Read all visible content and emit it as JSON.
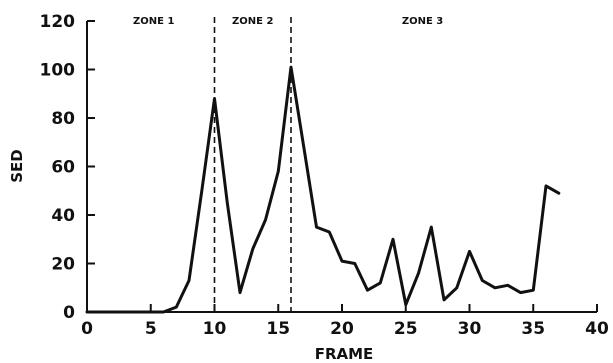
{
  "chart_data": {
    "type": "line",
    "title": "",
    "xlabel": "FRAME",
    "ylabel": "SED",
    "xlim": [
      0,
      40
    ],
    "ylim": [
      0,
      120
    ],
    "x_ticks": [
      0,
      5,
      10,
      15,
      20,
      25,
      30,
      35,
      40
    ],
    "y_ticks": [
      0,
      20,
      40,
      60,
      80,
      100,
      120
    ],
    "grid": false,
    "series": [
      {
        "x": [
          0,
          1,
          2,
          3,
          4,
          5,
          6,
          7,
          8,
          9,
          10,
          11,
          12,
          13,
          14,
          15,
          16,
          17,
          18,
          19,
          20,
          21,
          22,
          23,
          24,
          25,
          26,
          27,
          28,
          29,
          30,
          31,
          32,
          33,
          34,
          35,
          36,
          37
        ],
        "values": [
          0,
          0,
          0,
          0,
          0,
          0,
          0,
          2,
          13,
          50,
          88,
          45,
          8,
          26,
          38,
          58,
          101,
          68,
          35,
          33,
          21,
          20,
          9,
          12,
          30,
          3,
          16,
          35,
          5,
          10,
          25,
          13,
          10,
          11,
          8,
          9,
          52,
          49
        ]
      }
    ],
    "dividers": [
      {
        "x": 10,
        "style": "dashed"
      },
      {
        "x": 16,
        "style": "dashed"
      }
    ],
    "zones": [
      {
        "label": "ZONE 1"
      },
      {
        "label": "ZONE 2"
      },
      {
        "label": "ZONE 3"
      }
    ]
  }
}
